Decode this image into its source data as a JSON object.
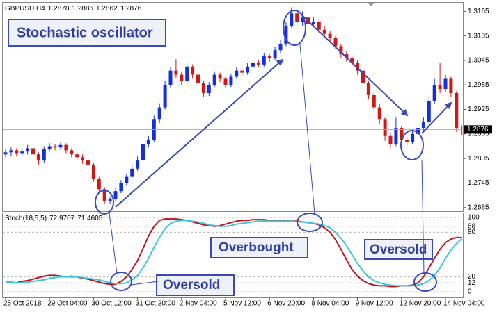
{
  "chart_data": [
    {
      "type": "candlestick",
      "title": "GBPUSD,H4",
      "open": [
        1.2815,
        1.282,
        1.2825,
        1.2818,
        1.2822,
        1.283,
        1.2815,
        1.28,
        1.2828,
        1.2835,
        1.2832,
        1.2838,
        1.2825,
        1.2815,
        1.2808,
        1.28,
        1.279,
        1.2755,
        1.273,
        1.27,
        1.2705,
        1.2725,
        1.2745,
        1.276,
        1.278,
        1.28,
        1.284,
        1.285,
        1.29,
        1.293,
        1.2985,
        1.302,
        1.301,
        1.2995,
        1.303,
        1.301,
        1.299,
        1.2965,
        1.2985,
        1.301,
        1.3,
        1.2985,
        1.3005,
        1.302,
        1.3015,
        1.303,
        1.304,
        1.3035,
        1.3055,
        1.305,
        1.307,
        1.3085,
        1.313,
        1.316,
        1.314,
        1.315,
        1.3135,
        1.314,
        1.312,
        1.311,
        1.31,
        1.308,
        1.306,
        1.305,
        1.304,
        1.302,
        1.299,
        1.296,
        1.293,
        1.29,
        1.286,
        1.284,
        1.288,
        1.285,
        1.2845,
        1.2865,
        1.288,
        1.2895,
        1.2945,
        1.2985,
        1.2975,
        1.3,
        1.2965,
        1.2878
      ],
      "high": [
        1.2828,
        1.2832,
        1.283,
        1.283,
        1.2838,
        1.2835,
        1.282,
        1.2835,
        1.2842,
        1.284,
        1.2845,
        1.2842,
        1.283,
        1.282,
        1.2815,
        1.2806,
        1.2795,
        1.276,
        1.2735,
        1.2712,
        1.2732,
        1.2752,
        1.2768,
        1.2788,
        1.281,
        1.2848,
        1.286,
        1.291,
        1.294,
        1.2995,
        1.303,
        1.3048,
        1.3018,
        1.304,
        1.3035,
        1.3015,
        1.2995,
        1.2992,
        1.3018,
        1.3015,
        1.3005,
        1.3012,
        1.3028,
        1.3025,
        1.3038,
        1.3048,
        1.3045,
        1.3062,
        1.306,
        1.3078,
        1.3095,
        1.314,
        1.3175,
        1.317,
        1.3165,
        1.3158,
        1.315,
        1.3145,
        1.3128,
        1.3118,
        1.3105,
        1.3085,
        1.3068,
        1.3058,
        1.3045,
        1.3028,
        1.2995,
        1.2968,
        1.2938,
        1.2905,
        1.2868,
        1.2905,
        1.2885,
        1.2858,
        1.2872,
        1.2888,
        1.2905,
        1.2955,
        1.3,
        1.304,
        1.301,
        1.3005,
        1.297,
        1.2886
      ],
      "low": [
        1.2808,
        1.2812,
        1.281,
        1.2812,
        1.2815,
        1.2808,
        1.279,
        1.2795,
        1.2822,
        1.2825,
        1.2826,
        1.2818,
        1.2808,
        1.28,
        1.2792,
        1.2782,
        1.2748,
        1.2722,
        1.2693,
        1.2695,
        1.27,
        1.272,
        1.2738,
        1.2755,
        1.2775,
        1.2795,
        1.2832,
        1.2845,
        1.2892,
        1.2925,
        1.2978,
        1.3002,
        1.2985,
        1.299,
        1.3,
        1.298,
        1.2955,
        1.2958,
        1.298,
        1.2992,
        1.2978,
        1.298,
        1.3,
        1.3008,
        1.301,
        1.3024,
        1.3028,
        1.303,
        1.3042,
        1.3045,
        1.3062,
        1.308,
        1.3125,
        1.3132,
        1.313,
        1.3125,
        1.3128,
        1.3112,
        1.3102,
        1.309,
        1.3072,
        1.305,
        1.3042,
        1.303,
        1.301,
        1.2982,
        1.295,
        1.292,
        1.289,
        1.2848,
        1.283,
        1.2835,
        1.284,
        1.2835,
        1.284,
        1.2858,
        1.2872,
        1.289,
        1.2938,
        1.2965,
        1.2968,
        1.2955,
        1.287,
        1.2862
      ],
      "close": [
        1.282,
        1.2825,
        1.2818,
        1.2822,
        1.283,
        1.2815,
        1.28,
        1.2828,
        1.2835,
        1.2832,
        1.2838,
        1.2825,
        1.2815,
        1.2808,
        1.28,
        1.279,
        1.2755,
        1.273,
        1.27,
        1.2705,
        1.2725,
        1.2745,
        1.276,
        1.278,
        1.28,
        1.284,
        1.285,
        1.29,
        1.293,
        1.2985,
        1.302,
        1.301,
        1.2995,
        1.303,
        1.301,
        1.299,
        1.2965,
        1.2985,
        1.301,
        1.3,
        1.2985,
        1.3005,
        1.302,
        1.3015,
        1.303,
        1.304,
        1.3035,
        1.3055,
        1.305,
        1.307,
        1.3085,
        1.313,
        1.316,
        1.314,
        1.315,
        1.3135,
        1.314,
        1.312,
        1.311,
        1.31,
        1.308,
        1.306,
        1.305,
        1.304,
        1.302,
        1.299,
        1.296,
        1.293,
        1.29,
        1.286,
        1.284,
        1.288,
        1.285,
        1.2845,
        1.2865,
        1.288,
        1.2895,
        1.2945,
        1.2985,
        1.2975,
        1.3,
        1.2965,
        1.288,
        1.2876
      ],
      "up_color": "#1530d8",
      "down_color": "#d01818",
      "ylim": [
        1.2676,
        1.3186
      ],
      "yticks": [
        1.2685,
        1.2745,
        1.2805,
        1.2865,
        1.2925,
        1.2985,
        1.3045,
        1.3105,
        1.3165
      ],
      "annotations": [
        "Stochastic oscillator"
      ]
    },
    {
      "type": "line",
      "title": "Stoch(18,5,5)",
      "categories": [
        "25 Oct 2018",
        null,
        null,
        null,
        null,
        null,
        null,
        null,
        "29 Oct 04:00",
        null,
        null,
        null,
        null,
        null,
        null,
        null,
        "30 Oct 12:00",
        null,
        null,
        null,
        null,
        null,
        null,
        null,
        "31 Oct 20:00",
        null,
        null,
        null,
        null,
        null,
        null,
        null,
        "2 Nov 04:00",
        null,
        null,
        null,
        null,
        null,
        null,
        null,
        "5 Nov 12:00",
        null,
        null,
        null,
        null,
        null,
        null,
        null,
        "6 Nov 20:00",
        null,
        null,
        null,
        null,
        null,
        null,
        null,
        "8 Nov 04:00",
        null,
        null,
        null,
        null,
        null,
        null,
        null,
        "9 Nov 12:00",
        null,
        null,
        null,
        null,
        null,
        null,
        null,
        "12 Nov 20:00",
        null,
        null,
        null,
        null,
        null,
        null,
        null,
        "14 Nov 04:00",
        null,
        null,
        null
      ],
      "series": [
        {
          "color": "#c0141c",
          "values": [
            13,
            12,
            12,
            14,
            15,
            17,
            19,
            21,
            22,
            22,
            21,
            20,
            21,
            20,
            18,
            17,
            15,
            13,
            11,
            10,
            10,
            14,
            20,
            30,
            42,
            58,
            75,
            88,
            96,
            98,
            98,
            98,
            97,
            96,
            94,
            92,
            90,
            89,
            88,
            89,
            91,
            93,
            95,
            96,
            96,
            97,
            97,
            97,
            96,
            96,
            96,
            96,
            95,
            95,
            94,
            93,
            92,
            90,
            86,
            80,
            70,
            57,
            43,
            30,
            21,
            15,
            11,
            9,
            8,
            8,
            7,
            7,
            8,
            8,
            9,
            12,
            20,
            32,
            45,
            57,
            66,
            71,
            73,
            72.9707
          ]
        },
        {
          "color": "#3ec6d6",
          "values": [
            13,
            13,
            12,
            12,
            13,
            14,
            15,
            16,
            18,
            19,
            20,
            20,
            20,
            20,
            19,
            18,
            17,
            16,
            14,
            12,
            11,
            11,
            12,
            16,
            22,
            32,
            45,
            60,
            73,
            85,
            92,
            95,
            96,
            96,
            95,
            94,
            92,
            90,
            89,
            88,
            88,
            89,
            91,
            92,
            93,
            94,
            95,
            95,
            95,
            95,
            95,
            95,
            95,
            94,
            94,
            93,
            92,
            91,
            89,
            86,
            80,
            72,
            62,
            50,
            38,
            28,
            20,
            15,
            12,
            10,
            9,
            8,
            8,
            8,
            8,
            9,
            11,
            15,
            22,
            32,
            45,
            56,
            65,
            71.4605
          ]
        }
      ],
      "ylim": [
        -7.5,
        106.5
      ],
      "yticks": [
        0,
        12,
        20,
        80,
        88,
        100
      ],
      "annotations": [
        "Overbought",
        "Oversold",
        "Oversold"
      ]
    }
  ]
}
